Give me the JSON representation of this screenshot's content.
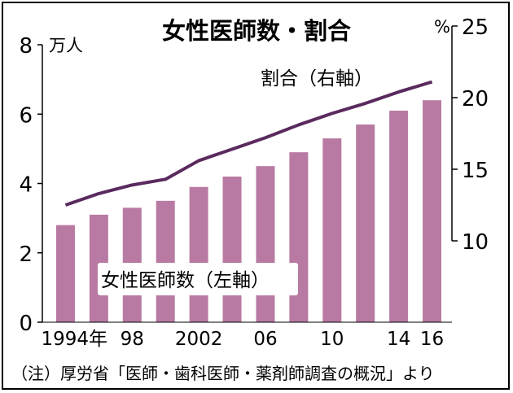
{
  "chart_data": {
    "type": "bar",
    "title": "女性医師数・割合",
    "categories": [
      "1994",
      "1996",
      "1998",
      "2000",
      "2002",
      "2004",
      "2006",
      "2008",
      "2010",
      "2012",
      "2014",
      "2016"
    ],
    "x_tick_labels": [
      {
        "category": "1994",
        "text": "1994年"
      },
      {
        "category": "1998",
        "text": "98"
      },
      {
        "category": "2002",
        "text": "2002"
      },
      {
        "category": "2006",
        "text": "06"
      },
      {
        "category": "2010",
        "text": "10"
      },
      {
        "category": "2014",
        "text": "14"
      },
      {
        "category": "2016",
        "text": "16"
      }
    ],
    "series": [
      {
        "name": "女性医師数（左軸）",
        "type": "bar",
        "axis": "left",
        "color": "#b87aa2",
        "values": [
          2.8,
          3.1,
          3.3,
          3.5,
          3.9,
          4.2,
          4.5,
          4.9,
          5.3,
          5.7,
          6.1,
          6.4
        ]
      },
      {
        "name": "割合（右軸）",
        "type": "line",
        "axis": "right",
        "color": "#5a2a5e",
        "values": [
          12.5,
          13.3,
          13.9,
          14.3,
          15.6,
          16.4,
          17.2,
          18.1,
          18.9,
          19.6,
          20.4,
          21.1
        ]
      }
    ],
    "y_left": {
      "ylim": [
        0,
        8
      ],
      "ticks": [
        0,
        2,
        4,
        6,
        8
      ],
      "unit": "万人"
    },
    "y_right": {
      "ylim": [
        10,
        25
      ],
      "ticks": [
        10,
        15,
        20,
        25
      ],
      "unit": "%"
    },
    "grid": false,
    "note": "（注）厚労省「医師・歯科医師・薬剤師調査の概況」より"
  }
}
